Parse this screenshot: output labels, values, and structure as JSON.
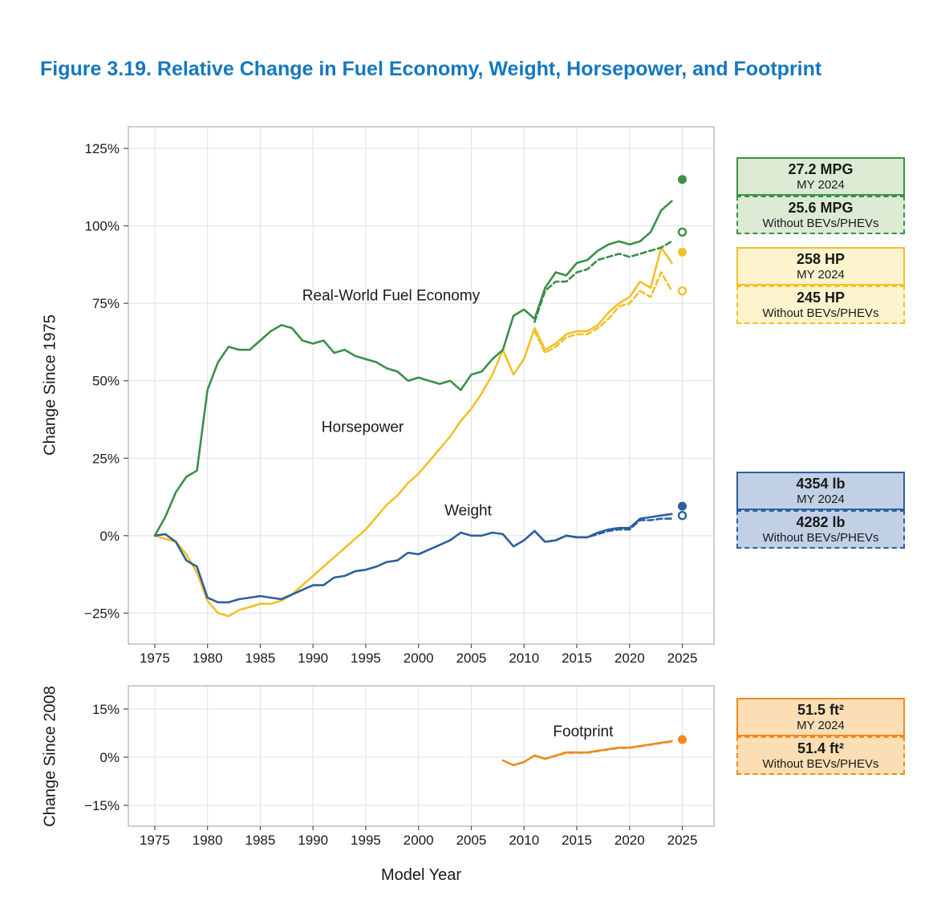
{
  "page": {
    "title": "Figure 3.19. Relative Change in Fuel Economy, Weight, Horsepower, and Footprint",
    "x_axis_title": "Model Year"
  },
  "colors": {
    "fuel_economy": "#3a9048",
    "horsepower": "#f2c029",
    "weight": "#2d5f9e",
    "footprint": "#f08a1d",
    "title_text": "#1578be",
    "grid": "#e0e0e0",
    "panel_border": "#b3b3b3",
    "tick": "#4d4d4d",
    "text": "#1a1a1a"
  },
  "fills": {
    "fuel_economy": "#dcead3",
    "horsepower": "#fdf3cd",
    "weight": "#c2d0e6",
    "footprint": "#fbdeb4"
  },
  "legend_boxes": [
    {
      "value": "27.2 MPG",
      "caption": "MY 2024",
      "series": "fuel_economy",
      "variant": "solid"
    },
    {
      "value": "25.6 MPG",
      "caption": "Without BEVs/PHEVs",
      "series": "fuel_economy",
      "variant": "dashed"
    },
    {
      "value": "258 HP",
      "caption": "MY 2024",
      "series": "horsepower",
      "variant": "solid"
    },
    {
      "value": "245 HP",
      "caption": "Without BEVs/PHEVs",
      "series": "horsepower",
      "variant": "dashed"
    },
    {
      "value": "4354 lb",
      "caption": "MY 2024",
      "series": "weight",
      "variant": "solid"
    },
    {
      "value": "4282 lb",
      "caption": "Without BEVs/PHEVs",
      "series": "weight",
      "variant": "dashed"
    },
    {
      "value": "51.5 ft²",
      "caption": "MY 2024",
      "series": "footprint",
      "variant": "solid"
    },
    {
      "value": "51.4 ft²",
      "caption": "Without BEVs/PHEVs",
      "series": "footprint",
      "variant": "dashed"
    }
  ],
  "chart_data": [
    {
      "type": "line",
      "ylabel": "Change Since 1975",
      "x_range": [
        1972.5,
        2028
      ],
      "y_range": [
        -35,
        132
      ],
      "x_ticks": [
        [
          1975,
          "1975"
        ],
        [
          1980,
          "1980"
        ],
        [
          1985,
          "1985"
        ],
        [
          1990,
          "1990"
        ],
        [
          1995,
          "1995"
        ],
        [
          2000,
          "2000"
        ],
        [
          2005,
          "2005"
        ],
        [
          2010,
          "2010"
        ],
        [
          2015,
          "2015"
        ],
        [
          2020,
          "2020"
        ],
        [
          2025,
          "2025"
        ]
      ],
      "y_ticks": [
        [
          125,
          "125%"
        ],
        [
          100,
          "100%"
        ],
        [
          75,
          "75%"
        ],
        [
          50,
          "50%"
        ],
        [
          25,
          "25%"
        ],
        [
          0,
          "0%"
        ],
        [
          -25,
          "−25%"
        ]
      ],
      "series": [
        {
          "name": "Horsepower",
          "color": "horsepower",
          "dash": false,
          "x0": 1975,
          "values": [
            0,
            -1,
            -2,
            -6,
            -12,
            -21,
            -25,
            -26,
            -24,
            -23,
            -22,
            -22,
            -21,
            -19,
            -16,
            -13,
            -10,
            -7,
            -4,
            -1,
            2,
            6,
            10,
            13,
            17,
            20,
            24,
            28,
            32,
            37,
            41,
            46,
            52,
            60,
            52,
            57,
            67,
            60,
            62,
            65,
            66,
            66,
            68,
            72,
            75,
            77,
            82,
            80,
            93,
            88
          ]
        },
        {
          "name": "Weight",
          "color": "weight",
          "dash": false,
          "x0": 1975,
          "values": [
            0,
            0.5,
            -2,
            -8,
            -10,
            -20,
            -21.5,
            -21.5,
            -20.5,
            -20,
            -19.5,
            -20,
            -20.5,
            -19,
            -17.5,
            -16,
            -16,
            -13.5,
            -13,
            -11.5,
            -11,
            -10,
            -8.5,
            -8,
            -5.5,
            -6,
            -4.5,
            -3,
            -1.5,
            1,
            0,
            0,
            1,
            0.5,
            -3.5,
            -1.5,
            1.5,
            -2,
            -1.5,
            0,
            -0.5,
            -0.5,
            1,
            2,
            2.5,
            2.5,
            5.5,
            6,
            6.5,
            7
          ]
        },
        {
          "name": "Real-World Fuel Economy",
          "color": "fuel_economy",
          "dash": false,
          "x0": 1975,
          "values": [
            0,
            6,
            14,
            19,
            21,
            47,
            56,
            61,
            60,
            60,
            63,
            66,
            68,
            67,
            63,
            62,
            63,
            59,
            60,
            58,
            57,
            56,
            54,
            53,
            50,
            51,
            50,
            49,
            50,
            47,
            52,
            53,
            57,
            60,
            71,
            73,
            70,
            80,
            85,
            84,
            88,
            89,
            92,
            94,
            95,
            94,
            95,
            98,
            105,
            108
          ]
        },
        {
          "name": "Horsepower (without BEVs/PHEVs)",
          "color": "horsepower",
          "dash": true,
          "x0": 2011,
          "values": [
            66,
            59,
            61,
            64,
            65,
            65,
            67,
            70,
            74,
            75,
            79,
            77,
            85,
            79
          ]
        },
        {
          "name": "Weight (without BEVs/PHEVs)",
          "color": "weight",
          "dash": true,
          "x0": 2011,
          "values": [
            1.5,
            -2,
            -1.5,
            0,
            -0.5,
            -0.5,
            0.5,
            1.5,
            2,
            2,
            5,
            5,
            5.5,
            5.5
          ]
        },
        {
          "name": "Real-World Fuel Economy (without BEVs/PHEVs)",
          "color": "fuel_economy",
          "dash": true,
          "x0": 2011,
          "values": [
            69,
            79,
            82,
            82,
            85,
            86,
            89,
            90,
            91,
            90,
            91,
            92,
            93,
            95
          ]
        }
      ],
      "end_markers": [
        {
          "x": 2025,
          "y": 115,
          "color": "fuel_economy",
          "filled": true
        },
        {
          "x": 2025,
          "y": 98,
          "color": "fuel_economy",
          "filled": false
        },
        {
          "x": 2025,
          "y": 91.5,
          "color": "horsepower",
          "filled": true
        },
        {
          "x": 2025,
          "y": 79,
          "color": "horsepower",
          "filled": false
        },
        {
          "x": 2025,
          "y": 9.5,
          "color": "weight",
          "filled": true
        },
        {
          "x": 2025,
          "y": 6.5,
          "color": "weight",
          "filled": false
        }
      ],
      "annotations": [
        {
          "text": "Real-World Fuel Economy",
          "x": 1997.4,
          "y": 76
        },
        {
          "text": "Horsepower",
          "x": 1994.7,
          "y": 33.5
        },
        {
          "text": "Weight",
          "x": 2004.7,
          "y": 6.5
        }
      ]
    },
    {
      "type": "line",
      "ylabel": "Change Since 2008",
      "x_range": [
        1972.5,
        2028
      ],
      "y_range": [
        -21.5,
        22.25
      ],
      "x_ticks": [
        [
          1975,
          "1975"
        ],
        [
          1980,
          "1980"
        ],
        [
          1985,
          "1985"
        ],
        [
          1990,
          "1990"
        ],
        [
          1995,
          "1995"
        ],
        [
          2000,
          "2000"
        ],
        [
          2005,
          "2005"
        ],
        [
          2010,
          "2010"
        ],
        [
          2015,
          "2015"
        ],
        [
          2020,
          "2020"
        ],
        [
          2025,
          "2025"
        ]
      ],
      "y_ticks": [
        [
          15,
          "15%"
        ],
        [
          0,
          "0%"
        ],
        [
          -15,
          "−15%"
        ]
      ],
      "series": [
        {
          "name": "Footprint (without BEVs/PHEVs)",
          "color": "footprint",
          "dash": true,
          "x0": 2011,
          "values": [
            0.5,
            -0.5,
            0.4,
            1.4,
            1.4,
            1.4,
            1.9,
            2.4,
            2.9,
            2.9,
            3.4,
            3.9,
            4.4,
            4.9
          ]
        },
        {
          "name": "Footprint",
          "color": "footprint",
          "dash": false,
          "x0": 2008,
          "values": [
            -1,
            -2.5,
            -1.5,
            0.5,
            -0.5,
            0.5,
            1.5,
            1.5,
            1.5,
            2,
            2.5,
            3,
            3,
            3.5,
            4,
            4.5,
            5
          ]
        }
      ],
      "end_markers": [
        {
          "x": 2025,
          "y": 5.5,
          "color": "footprint",
          "filled": true
        }
      ],
      "annotations": [
        {
          "text": "Footprint",
          "x": 2015.6,
          "y": 6.5
        }
      ]
    }
  ]
}
